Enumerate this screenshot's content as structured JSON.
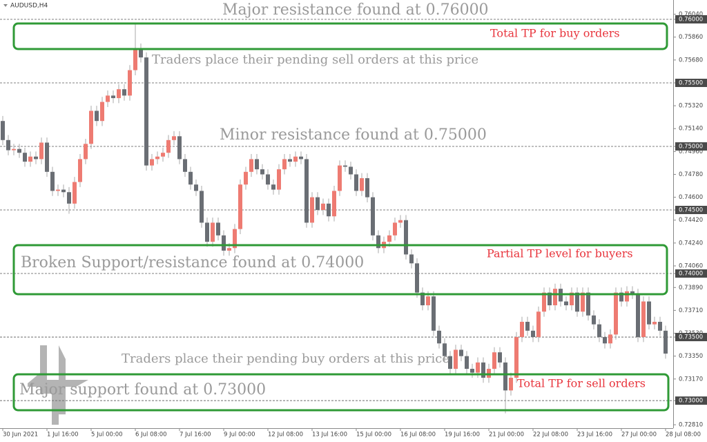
{
  "chart_data": {
    "type": "candlestick",
    "symbol": "AUDUSD,H4",
    "up_color": "#ee7b72",
    "down_color": "#6a6e74",
    "ylim": [
      0.72783,
      0.76152
    ],
    "yticks": [
      {
        "value": 0.7604,
        "label": "0.76040"
      },
      {
        "value": 0.76,
        "label": "0.76000",
        "highlight": true
      },
      {
        "value": 0.7586,
        "label": "0.75860"
      },
      {
        "value": 0.7568,
        "label": "0.75680"
      },
      {
        "value": 0.755,
        "label": "0.75500",
        "highlight": true
      },
      {
        "value": 0.7532,
        "label": "0.75320"
      },
      {
        "value": 0.7514,
        "label": "0.75140"
      },
      {
        "value": 0.75,
        "label": "0.75000",
        "highlight": true
      },
      {
        "value": 0.7496,
        "label": "0.74960"
      },
      {
        "value": 0.7478,
        "label": "0.74780"
      },
      {
        "value": 0.746,
        "label": "0.74600"
      },
      {
        "value": 0.745,
        "label": "0.74500",
        "highlight": true
      },
      {
        "value": 0.7442,
        "label": "0.74420"
      },
      {
        "value": 0.7424,
        "label": "0.74240"
      },
      {
        "value": 0.7406,
        "label": "0.74060"
      },
      {
        "value": 0.74,
        "label": "0.74000",
        "highlight": true
      },
      {
        "value": 0.7389,
        "label": "0.73890"
      },
      {
        "value": 0.7371,
        "label": "0.73710"
      },
      {
        "value": 0.7353,
        "label": "0.73530"
      },
      {
        "value": 0.735,
        "label": "0.73500",
        "highlight": true
      },
      {
        "value": 0.7335,
        "label": "0.73350"
      },
      {
        "value": 0.7317,
        "label": "0.73170"
      },
      {
        "value": 0.73,
        "label": "0.73000",
        "highlight": true
      },
      {
        "value": 0.7281,
        "label": "0.72810"
      }
    ],
    "categories": [
      "30 Jun 2021",
      null,
      null,
      null,
      null,
      null,
      null,
      null,
      "1 Jul 16:00",
      null,
      null,
      null,
      null,
      null,
      null,
      null,
      "5 Jul 00:00",
      null,
      null,
      null,
      null,
      null,
      null,
      null,
      "6 Jul 08:00",
      null,
      null,
      null,
      null,
      null,
      null,
      null,
      "7 Jul 16:00",
      null,
      null,
      null,
      null,
      null,
      null,
      null,
      "9 Jul 00:00",
      null,
      null,
      null,
      null,
      null,
      null,
      null,
      "12 Jul 08:00",
      null,
      null,
      null,
      null,
      null,
      null,
      null,
      "13 Jul 16:00",
      null,
      null,
      null,
      null,
      null,
      null,
      null,
      "15 Jul 00:00",
      null,
      null,
      null,
      null,
      null,
      null,
      null,
      "16 Jul 08:00",
      null,
      null,
      null,
      null,
      null,
      null,
      null,
      "19 Jul 16:00",
      null,
      null,
      null,
      null,
      null,
      null,
      null,
      "21 Jul 00:00",
      null,
      null,
      null,
      null,
      null,
      null,
      null,
      "22 Jul 08:00",
      null,
      null,
      null,
      null,
      null,
      null,
      null,
      "23 Jul 16:00",
      null,
      null,
      null,
      null,
      null,
      null,
      null,
      "27 Jul 00:00",
      null,
      null,
      null,
      null,
      null,
      null,
      null,
      "28 Jul 08:00"
    ],
    "open": [
      0.752,
      0.7505,
      0.7497,
      0.7498,
      0.7495,
      0.7488,
      0.7492,
      0.749,
      0.7503,
      0.748,
      0.7465,
      0.7466,
      0.7464,
      0.7455,
      0.7472,
      0.749,
      0.7502,
      0.7528,
      0.752,
      0.7535,
      0.754,
      0.7538,
      0.7545,
      0.754,
      0.756,
      0.7577,
      0.757,
      0.7485,
      0.749,
      0.7492,
      0.7495,
      0.7505,
      0.7508,
      0.749,
      0.748,
      0.747,
      0.7465,
      0.744,
      0.7425,
      0.744,
      0.743,
      0.7418,
      0.742,
      0.7435,
      0.747,
      0.748,
      0.749,
      0.7482,
      0.7478,
      0.747,
      0.7466,
      0.7482,
      0.749,
      0.7488,
      0.7492,
      0.749,
      0.744,
      0.746,
      0.745,
      0.7455,
      0.7445,
      0.7465,
      0.7485,
      0.7484,
      0.7478,
      0.7465,
      0.7475,
      0.746,
      0.743,
      0.742,
      0.7425,
      0.743,
      0.744,
      0.7442,
      0.7415,
      0.7408,
      0.7385,
      0.7375,
      0.7382,
      0.7355,
      0.7345,
      0.7335,
      0.7325,
      0.734,
      0.7335,
      0.7325,
      0.7322,
      0.733,
      0.7318,
      0.7325,
      0.7338,
      0.733,
      0.7308,
      0.7318,
      0.735,
      0.7362,
      0.7355,
      0.735,
      0.737,
      0.7385,
      0.7375,
      0.7388,
      0.7378,
      0.7375,
      0.7385,
      0.737,
      0.7385,
      0.7367,
      0.736,
      0.735,
      0.7345,
      0.7352,
      0.7385,
      0.7378,
      0.7386,
      0.7384,
      0.735,
      0.7378,
      0.736,
      0.7362,
      0.7355
    ],
    "high": [
      0.7524,
      0.7509,
      0.7502,
      0.7502,
      0.7499,
      0.7496,
      0.7496,
      0.7507,
      0.7507,
      0.7484,
      0.747,
      0.747,
      0.7468,
      0.7476,
      0.7494,
      0.7506,
      0.7532,
      0.7532,
      0.7539,
      0.7544,
      0.7544,
      0.7549,
      0.7549,
      0.7564,
      0.7596,
      0.7581,
      0.7574,
      0.7494,
      0.7496,
      0.7499,
      0.7509,
      0.7512,
      0.7512,
      0.7494,
      0.7484,
      0.7474,
      0.7469,
      0.7444,
      0.7444,
      0.7444,
      0.7434,
      0.7424,
      0.7439,
      0.7474,
      0.7484,
      0.7494,
      0.7494,
      0.7486,
      0.7482,
      0.7474,
      0.7486,
      0.7494,
      0.7494,
      0.7496,
      0.7496,
      0.7494,
      0.7464,
      0.7464,
      0.7459,
      0.7459,
      0.7469,
      0.7489,
      0.7489,
      0.7488,
      0.7482,
      0.7479,
      0.7479,
      0.7464,
      0.7434,
      0.7429,
      0.7434,
      0.7444,
      0.7446,
      0.7446,
      0.7419,
      0.7412,
      0.7389,
      0.7386,
      0.7386,
      0.7359,
      0.7349,
      0.7339,
      0.7344,
      0.7344,
      0.7339,
      0.7329,
      0.7334,
      0.7334,
      0.7329,
      0.7342,
      0.7342,
      0.7334,
      0.7322,
      0.7354,
      0.7366,
      0.7366,
      0.7359,
      0.7374,
      0.7389,
      0.7389,
      0.7392,
      0.7392,
      0.7382,
      0.7389,
      0.7389,
      0.7389,
      0.7389,
      0.7371,
      0.7364,
      0.7354,
      0.7356,
      0.7389,
      0.7389,
      0.739,
      0.739,
      0.7388,
      0.7382,
      0.7382,
      0.7366,
      0.7366,
      0.7359
    ],
    "low": [
      0.7501,
      0.7493,
      0.7493,
      0.7491,
      0.7484,
      0.7484,
      0.7486,
      0.7486,
      0.7476,
      0.7461,
      0.7461,
      0.746,
      0.7447,
      0.7451,
      0.7468,
      0.7486,
      0.7498,
      0.7516,
      0.7516,
      0.7531,
      0.7534,
      0.7534,
      0.7536,
      0.7536,
      0.7556,
      0.7566,
      0.7481,
      0.7481,
      0.7486,
      0.7488,
      0.7491,
      0.7501,
      0.7486,
      0.7476,
      0.7466,
      0.7461,
      0.7436,
      0.7421,
      0.7421,
      0.7426,
      0.7414,
      0.7414,
      0.7416,
      0.7431,
      0.7466,
      0.7476,
      0.7478,
      0.7474,
      0.7466,
      0.7462,
      0.7462,
      0.7478,
      0.7484,
      0.7484,
      0.7486,
      0.7436,
      0.7436,
      0.7446,
      0.7446,
      0.7441,
      0.7441,
      0.7461,
      0.748,
      0.7474,
      0.7461,
      0.7461,
      0.7456,
      0.7426,
      0.7416,
      0.7416,
      0.7421,
      0.7426,
      0.7436,
      0.7411,
      0.7404,
      0.7381,
      0.7371,
      0.7371,
      0.7351,
      0.7341,
      0.7331,
      0.7321,
      0.7321,
      0.7331,
      0.7321,
      0.7318,
      0.7318,
      0.7314,
      0.7314,
      0.7321,
      0.7326,
      0.729,
      0.7304,
      0.7314,
      0.7346,
      0.7351,
      0.7346,
      0.7346,
      0.7366,
      0.7371,
      0.7371,
      0.7374,
      0.7371,
      0.7371,
      0.7366,
      0.7366,
      0.7363,
      0.7356,
      0.7346,
      0.7341,
      0.7341,
      0.7348,
      0.7374,
      0.7374,
      0.738,
      0.7346,
      0.7346,
      0.7356,
      0.7356,
      0.7351,
      0.7333
    ],
    "close": [
      0.7505,
      0.7497,
      0.7498,
      0.7495,
      0.7488,
      0.7492,
      0.749,
      0.7503,
      0.748,
      0.7465,
      0.7466,
      0.7464,
      0.7455,
      0.7472,
      0.749,
      0.7502,
      0.7528,
      0.752,
      0.7535,
      0.754,
      0.7538,
      0.7545,
      0.754,
      0.756,
      0.7577,
      0.757,
      0.7485,
      0.749,
      0.7492,
      0.7495,
      0.7505,
      0.7508,
      0.749,
      0.748,
      0.747,
      0.7465,
      0.744,
      0.7425,
      0.744,
      0.743,
      0.7418,
      0.742,
      0.7435,
      0.747,
      0.748,
      0.749,
      0.7482,
      0.7478,
      0.747,
      0.7466,
      0.7482,
      0.749,
      0.7488,
      0.7492,
      0.749,
      0.744,
      0.746,
      0.745,
      0.7455,
      0.7445,
      0.7465,
      0.7485,
      0.7484,
      0.7478,
      0.7465,
      0.7475,
      0.746,
      0.743,
      0.742,
      0.7425,
      0.743,
      0.744,
      0.7442,
      0.7415,
      0.7408,
      0.7385,
      0.7375,
      0.7382,
      0.7355,
      0.7345,
      0.7335,
      0.7325,
      0.734,
      0.7335,
      0.7325,
      0.7322,
      0.733,
      0.7318,
      0.7325,
      0.7338,
      0.733,
      0.7308,
      0.7318,
      0.735,
      0.7362,
      0.7355,
      0.735,
      0.737,
      0.7385,
      0.7375,
      0.7388,
      0.7378,
      0.7375,
      0.7385,
      0.737,
      0.7385,
      0.7367,
      0.736,
      0.735,
      0.7345,
      0.7352,
      0.7385,
      0.7378,
      0.7386,
      0.7384,
      0.735,
      0.7378,
      0.736,
      0.7362,
      0.7355,
      0.7337
    ],
    "annotations": [
      "Major resistance found at 0.76000",
      "Total TP for buy orders",
      "Traders place their pending sell orders at this price",
      "Minor resistance found at 0.75000",
      "Partial TP level for buyers",
      "Broken Support/resistance found at 0.74000",
      "Traders place their pending buy orders at this price",
      "Major support found at 0.73000",
      "Total TP for sell orders"
    ]
  }
}
